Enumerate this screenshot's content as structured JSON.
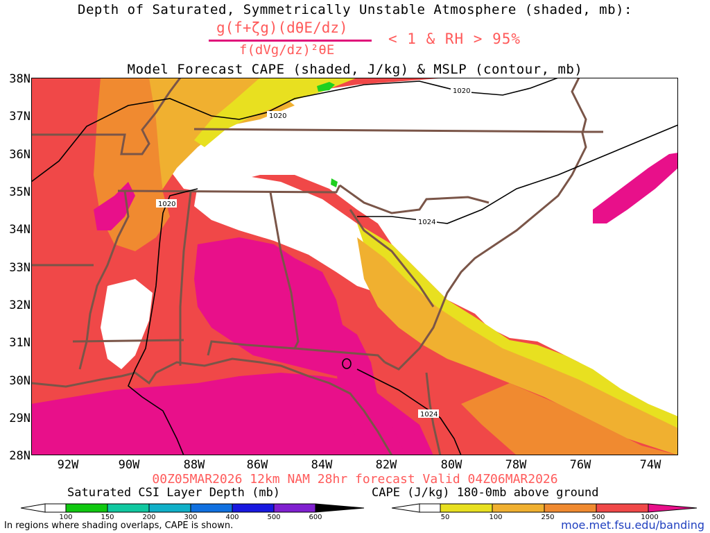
{
  "title": {
    "line1": "Depth of Saturated, Symmetrically Unstable Atmosphere (shaded, mb):",
    "numerator": "g(f+ζg)(dθE/dz)",
    "denominator": "f(dVg/dz)²θE",
    "condition": "< 1 & RH > 95%",
    "line3": "Model Forecast CAPE (shaded, J/kg) & MSLP (contour, mb)"
  },
  "axes": {
    "lat_labels": [
      "38N",
      "37N",
      "36N",
      "35N",
      "34N",
      "33N",
      "32N",
      "31N",
      "30N",
      "29N",
      "28N"
    ],
    "lon_labels": [
      "92W",
      "90W",
      "88W",
      "86W",
      "84W",
      "82W",
      "80W",
      "78W",
      "76W",
      "74W"
    ]
  },
  "isobar_labels": [
    "1020",
    "1020",
    "1020",
    "1024",
    "1024"
  ],
  "colors": {
    "cape_50": "#e8e020",
    "cape_100": "#f0b030",
    "cape_250": "#f08a30",
    "cape_500": "#f04848",
    "cape_1000": "#e8108a",
    "csi": "#20d020",
    "state_lines": "#7a5548"
  },
  "footer": {
    "run": "00Z05MAR2026 12km NAM 28hr forecast Valid 04Z06MAR2026",
    "note": "In regions where shading overlaps, CAPE is shown.",
    "url": "moe.met.fsu.edu/banding"
  },
  "colorbar_csi": {
    "title": "Saturated CSI Layer Depth (mb)",
    "ticks": [
      "100",
      "150",
      "200",
      "300",
      "400",
      "500",
      "600"
    ],
    "colors": [
      "#ffffff",
      "#10c810",
      "#10c8a0",
      "#10b0c8",
      "#1070e0",
      "#1818e0",
      "#8020d0",
      "#000000"
    ]
  },
  "colorbar_cape": {
    "title": "CAPE (J/kg) 180-0mb above ground",
    "ticks": [
      "50",
      "100",
      "250",
      "500",
      "1000"
    ],
    "colors": [
      "#ffffff",
      "#e8e020",
      "#f0b030",
      "#f08a30",
      "#f04848",
      "#e8108a"
    ]
  }
}
